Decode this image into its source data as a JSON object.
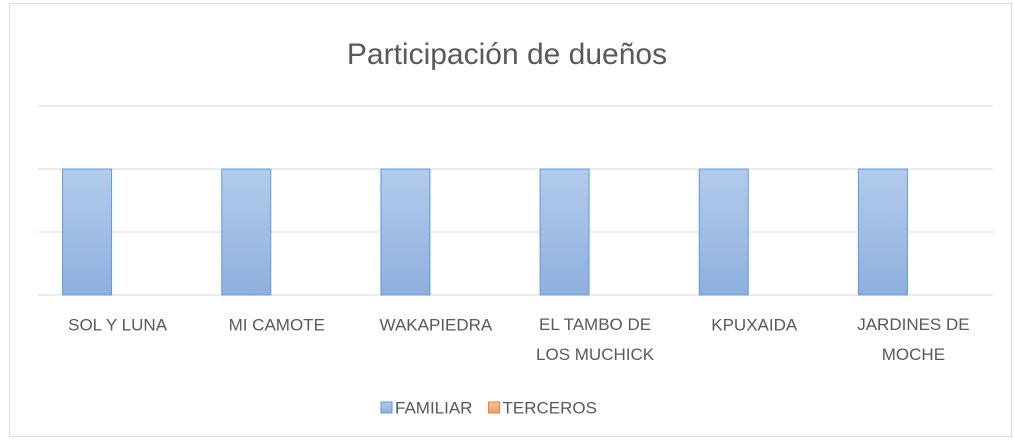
{
  "chart_data": {
    "type": "bar",
    "title": "Participación de dueños",
    "categories": [
      "SOL Y LUNA",
      "MI CAMOTE",
      "WAKAPIEDRA",
      "EL TAMBO DE LOS MUCHICK",
      "KPUXAIDA",
      "JARDINES DE MOCHE"
    ],
    "series": [
      {
        "name": "FAMILIAR",
        "color": "#9dbbe3",
        "values": [
          2,
          2,
          2,
          2,
          2,
          2
        ]
      },
      {
        "name": "TERCEROS",
        "color": "#f4b183",
        "values": [
          0,
          0,
          0,
          0,
          0,
          0
        ]
      }
    ],
    "ylim": [
      0,
      3
    ],
    "yticks": [
      0,
      1,
      2,
      3
    ],
    "grid": true,
    "legend": "bottom"
  }
}
